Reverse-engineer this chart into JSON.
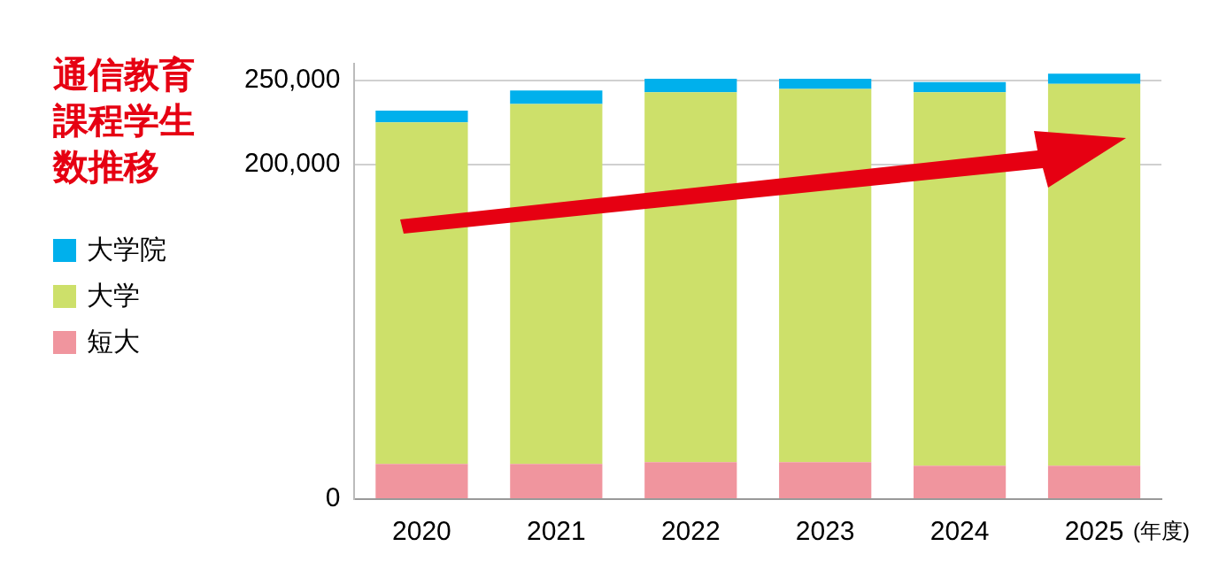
{
  "chart_data": {
    "type": "bar",
    "title": "通信教育課程学生数推移",
    "xlabel": "(年度)",
    "categories": [
      "2020",
      "2021",
      "2022",
      "2023",
      "2024",
      "2025"
    ],
    "stacked": true,
    "series": [
      {
        "name": "短大",
        "color": "#f0959e",
        "values": [
          21000,
          21000,
          22000,
          22000,
          20000,
          20000
        ]
      },
      {
        "name": "大学",
        "color": "#cde06a",
        "values": [
          204000,
          215000,
          221000,
          223000,
          223000,
          228000
        ]
      },
      {
        "name": "大学院",
        "color": "#00b0ec",
        "values": [
          7000,
          8000,
          8000,
          6000,
          6000,
          6000
        ]
      }
    ],
    "ylim": [
      0,
      260000
    ],
    "yticks": [
      {
        "value": 0,
        "label": "0"
      },
      {
        "value": 200000,
        "label": "200,000"
      },
      {
        "value": 250000,
        "label": "250,000"
      }
    ],
    "grid": "y",
    "legend": "left"
  }
}
